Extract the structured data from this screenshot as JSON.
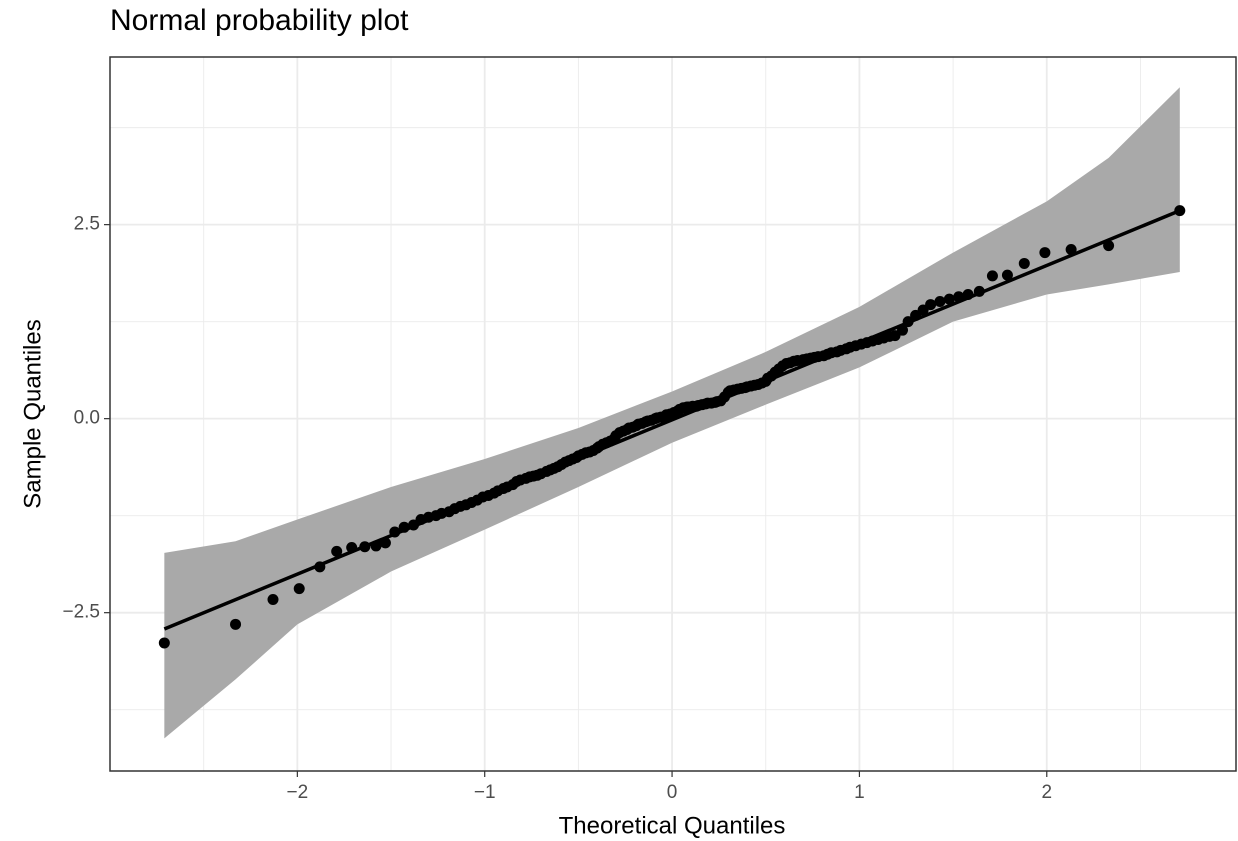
{
  "chart_data": {
    "type": "scatter",
    "title": "Normal probability plot",
    "x_label": "Theoretical Quantiles",
    "y_label": "Sample Quantiles",
    "color": "#000000",
    "x": [
      -2.71,
      -2.33,
      -2.13,
      -1.99,
      -1.88,
      -1.79,
      -1.71,
      -1.64,
      -1.58,
      -1.53,
      -1.48,
      -1.43,
      -1.38,
      -1.34,
      -1.3,
      -1.26,
      -1.23,
      -1.19,
      -1.16,
      -1.13,
      -1.1,
      -1.07,
      -1.04,
      -1.01,
      -0.98,
      -0.95,
      -0.93,
      -0.9,
      -0.88,
      -0.85,
      -0.83,
      -0.81,
      -0.78,
      -0.76,
      -0.74,
      -0.72,
      -0.7,
      -0.67,
      -0.65,
      -0.63,
      -0.61,
      -0.59,
      -0.57,
      -0.55,
      -0.53,
      -0.51,
      -0.5,
      -0.48,
      -0.46,
      -0.44,
      -0.42,
      -0.4,
      -0.39,
      -0.37,
      -0.35,
      -0.33,
      -0.31,
      -0.3,
      -0.28,
      -0.26,
      -0.24,
      -0.23,
      -0.21,
      -0.19,
      -0.18,
      -0.16,
      -0.14,
      -0.13,
      -0.11,
      -0.09,
      -0.08,
      -0.06,
      -0.04,
      -0.03,
      -0.01,
      0.01,
      0.03,
      0.04,
      0.06,
      0.08,
      0.09,
      0.11,
      0.13,
      0.14,
      0.16,
      0.18,
      0.19,
      0.21,
      0.23,
      0.24,
      0.26,
      0.28,
      0.3,
      0.31,
      0.33,
      0.35,
      0.37,
      0.39,
      0.4,
      0.42,
      0.44,
      0.46,
      0.48,
      0.5,
      0.51,
      0.53,
      0.55,
      0.57,
      0.59,
      0.61,
      0.63,
      0.65,
      0.67,
      0.7,
      0.72,
      0.74,
      0.76,
      0.78,
      0.81,
      0.83,
      0.85,
      0.88,
      0.9,
      0.93,
      0.95,
      0.98,
      1.01,
      1.04,
      1.07,
      1.1,
      1.13,
      1.16,
      1.19,
      1.23,
      1.26,
      1.3,
      1.34,
      1.38,
      1.43,
      1.48,
      1.53,
      1.58,
      1.64,
      1.71,
      1.79,
      1.88,
      1.99,
      2.13,
      2.33,
      2.71
    ],
    "values": [
      -2.89,
      -2.65,
      -2.33,
      -2.19,
      -1.91,
      -1.71,
      -1.66,
      -1.65,
      -1.64,
      -1.6,
      -1.46,
      -1.4,
      -1.37,
      -1.3,
      -1.27,
      -1.25,
      -1.22,
      -1.2,
      -1.16,
      -1.13,
      -1.11,
      -1.08,
      -1.05,
      -1.01,
      -0.99,
      -0.96,
      -0.93,
      -0.9,
      -0.88,
      -0.85,
      -0.81,
      -0.79,
      -0.77,
      -0.75,
      -0.74,
      -0.73,
      -0.71,
      -0.68,
      -0.66,
      -0.64,
      -0.62,
      -0.59,
      -0.56,
      -0.54,
      -0.52,
      -0.5,
      -0.48,
      -0.46,
      -0.44,
      -0.43,
      -0.41,
      -0.38,
      -0.36,
      -0.33,
      -0.31,
      -0.29,
      -0.26,
      -0.22,
      -0.18,
      -0.16,
      -0.14,
      -0.12,
      -0.11,
      -0.09,
      -0.07,
      -0.06,
      -0.04,
      -0.03,
      -0.02,
      0.0,
      0.01,
      0.02,
      0.03,
      0.05,
      0.06,
      0.08,
      0.1,
      0.12,
      0.14,
      0.15,
      0.15,
      0.16,
      0.16,
      0.17,
      0.18,
      0.19,
      0.2,
      0.2,
      0.21,
      0.22,
      0.23,
      0.28,
      0.34,
      0.36,
      0.37,
      0.38,
      0.39,
      0.4,
      0.41,
      0.42,
      0.43,
      0.44,
      0.46,
      0.48,
      0.52,
      0.55,
      0.6,
      0.64,
      0.68,
      0.71,
      0.72,
      0.74,
      0.75,
      0.76,
      0.77,
      0.78,
      0.79,
      0.8,
      0.81,
      0.83,
      0.85,
      0.86,
      0.88,
      0.9,
      0.92,
      0.94,
      0.96,
      0.98,
      1.0,
      1.02,
      1.04,
      1.06,
      1.07,
      1.14,
      1.25,
      1.33,
      1.4,
      1.47,
      1.51,
      1.54,
      1.57,
      1.6,
      1.64,
      1.84,
      1.85,
      2.0,
      2.14,
      2.18,
      2.23,
      2.68
    ],
    "line": {
      "x": [
        -2.71,
        2.71
      ],
      "values": [
        -2.71,
        2.68
      ],
      "color": "#000000"
    },
    "band": {
      "x": [
        -2.71,
        -2.33,
        -2,
        -1.5,
        -1,
        -0.5,
        0,
        0.5,
        1,
        1.5,
        2,
        2.33,
        2.71
      ],
      "upper": [
        -1.73,
        -1.58,
        -1.3,
        -0.88,
        -0.52,
        -0.12,
        0.35,
        0.86,
        1.44,
        2.14,
        2.8,
        3.36,
        4.27
      ],
      "lower": [
        -4.12,
        -3.36,
        -2.65,
        -1.97,
        -1.43,
        -0.88,
        -0.31,
        0.18,
        0.66,
        1.25,
        1.6,
        1.73,
        1.89
      ],
      "color": "#a9a9a9"
    },
    "xlim": [
      -3,
      3.01
    ],
    "ylim": [
      -4.54,
      4.66
    ],
    "xticks": [
      {
        "value": -2,
        "label": "−2"
      },
      {
        "value": -1,
        "label": "−1"
      },
      0,
      1,
      2
    ],
    "yticks": [
      {
        "value": -2.5,
        "label": "−2.5"
      },
      {
        "value": 0,
        "label": "0.0"
      },
      2.5
    ],
    "x_minor_ticks": [
      -2.5,
      -1.5,
      -0.5,
      0.5,
      1.5,
      2.5
    ],
    "y_minor_ticks": [
      -3.75,
      -1.25,
      1.25,
      3.75
    ],
    "grid": true
  }
}
